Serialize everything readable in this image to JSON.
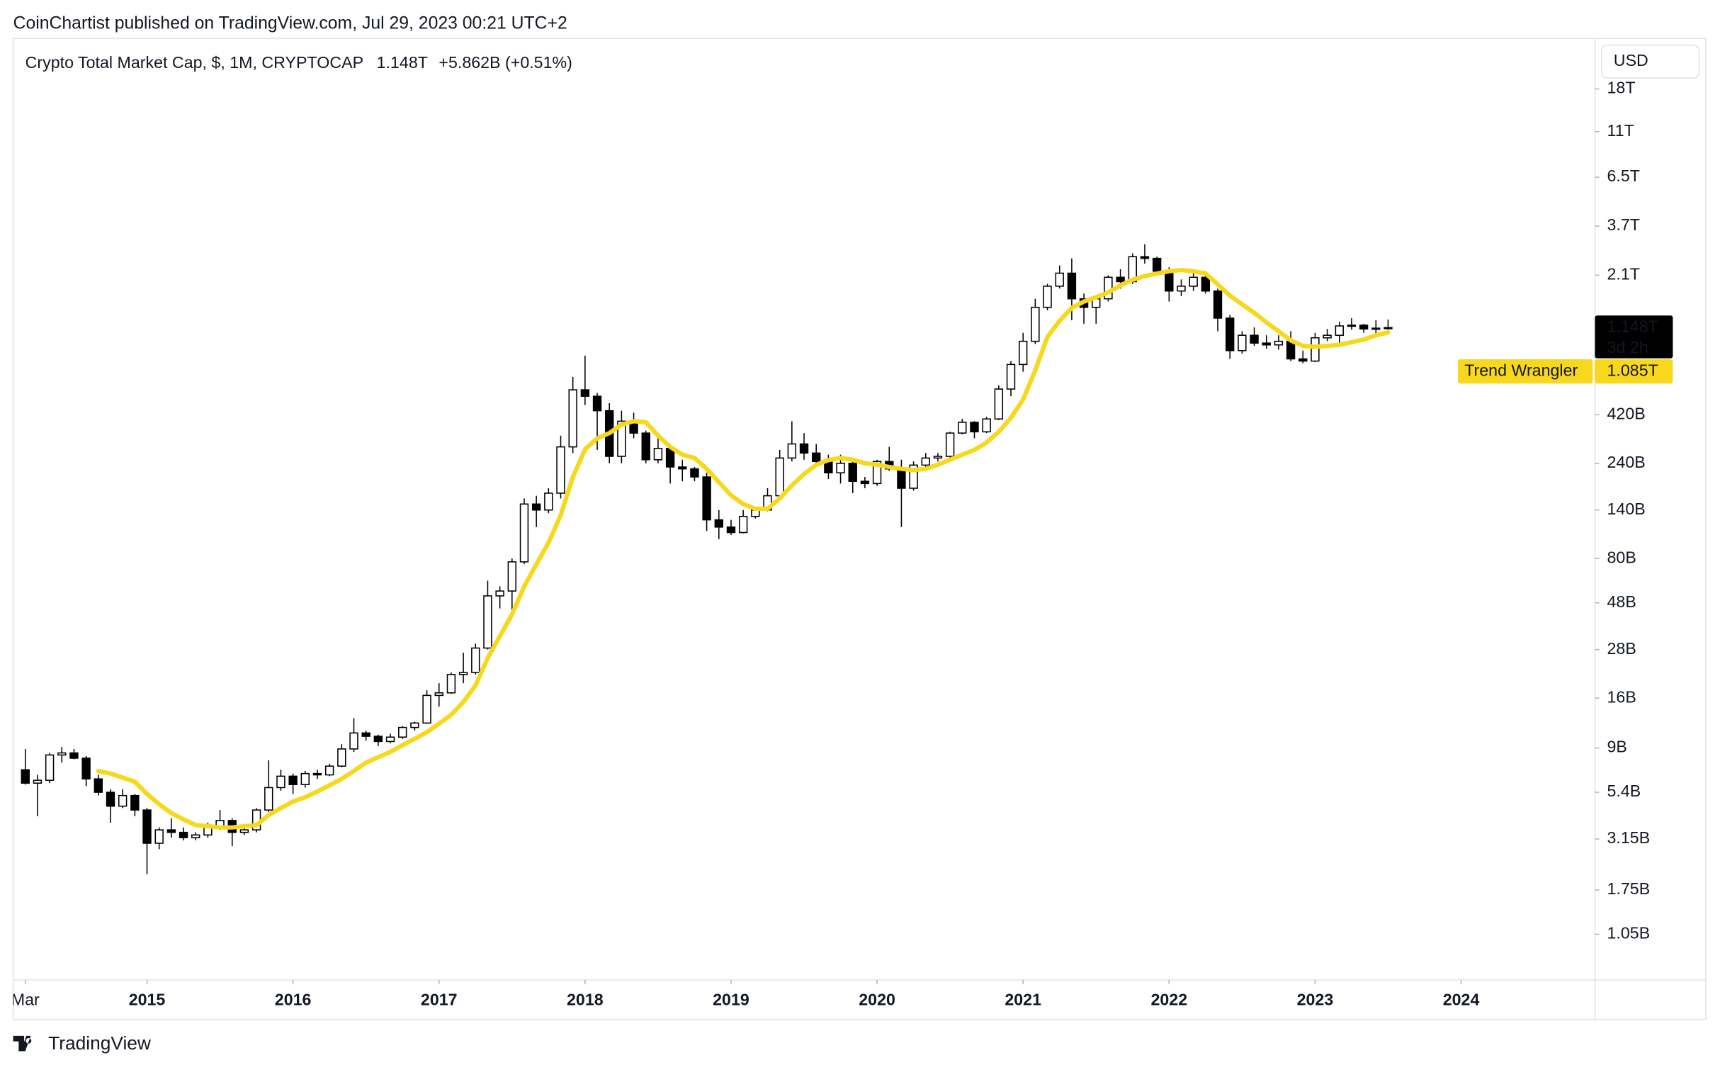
{
  "header": {
    "publisher": "CoinChartist published on TradingView.com, Jul 29, 2023 00:21 UTC+2",
    "currency_button": "USD",
    "footer_brand": "TradingView"
  },
  "chart_data": {
    "type": "candlestick",
    "title": "Crypto Total Market Cap, $, 1M, CRYPTOCAP",
    "last_price": {
      "value": 1148000000000.0,
      "label": "1.148T",
      "countdown": "3d 2h"
    },
    "change": "+5.862B (+0.51%)",
    "log_scale": true,
    "grid": false,
    "up_color": "#ffffff",
    "down_color": "#000000",
    "wick_color": "#000000",
    "xlim": [
      "2014-02",
      "2024-12"
    ],
    "xticks": [
      {
        "value": "2014-03",
        "label": "Mar"
      },
      {
        "value": "2015-01",
        "label": "2015"
      },
      {
        "value": "2016-01",
        "label": "2016"
      },
      {
        "value": "2017-01",
        "label": "2017"
      },
      {
        "value": "2018-01",
        "label": "2018"
      },
      {
        "value": "2019-01",
        "label": "2019"
      },
      {
        "value": "2020-01",
        "label": "2020"
      },
      {
        "value": "2021-01",
        "label": "2021"
      },
      {
        "value": "2022-01",
        "label": "2022"
      },
      {
        "value": "2023-01",
        "label": "2023"
      },
      {
        "value": "2024-01",
        "label": "2024"
      }
    ],
    "ylim": [
      620000000.0,
      32200000000000.0
    ],
    "yticks": [
      {
        "value": 18000000000000.0,
        "label": "18T"
      },
      {
        "value": 11000000000000.0,
        "label": "11T"
      },
      {
        "value": 6500000000000.0,
        "label": "6.5T"
      },
      {
        "value": 3700000000000.0,
        "label": "3.7T"
      },
      {
        "value": 2100000000000.0,
        "label": "2.1T"
      },
      {
        "value": 420000000000.0,
        "label": "420B"
      },
      {
        "value": 240000000000.0,
        "label": "240B"
      },
      {
        "value": 140000000000.0,
        "label": "140B"
      },
      {
        "value": 80000000000.0,
        "label": "80B"
      },
      {
        "value": 48000000000.0,
        "label": "48B"
      },
      {
        "value": 28000000000.0,
        "label": "28B"
      },
      {
        "value": 16000000000.0,
        "label": "16B"
      },
      {
        "value": 9000000000.0,
        "label": "9B"
      },
      {
        "value": 5400000000.0,
        "label": "5.4B"
      },
      {
        "value": 3150000000.0,
        "label": "3.15B"
      },
      {
        "value": 1750000000.0,
        "label": "1.75B"
      },
      {
        "value": 1050000000.0,
        "label": "1.05B"
      }
    ],
    "x": [
      "2014-03",
      "2014-04",
      "2014-05",
      "2014-06",
      "2014-07",
      "2014-08",
      "2014-09",
      "2014-10",
      "2014-11",
      "2014-12",
      "2015-01",
      "2015-02",
      "2015-03",
      "2015-04",
      "2015-05",
      "2015-06",
      "2015-07",
      "2015-08",
      "2015-09",
      "2015-10",
      "2015-11",
      "2015-12",
      "2016-01",
      "2016-02",
      "2016-03",
      "2016-04",
      "2016-05",
      "2016-06",
      "2016-07",
      "2016-08",
      "2016-09",
      "2016-10",
      "2016-11",
      "2016-12",
      "2017-01",
      "2017-02",
      "2017-03",
      "2017-04",
      "2017-05",
      "2017-06",
      "2017-07",
      "2017-08",
      "2017-09",
      "2017-10",
      "2017-11",
      "2017-12",
      "2018-01",
      "2018-02",
      "2018-03",
      "2018-04",
      "2018-05",
      "2018-06",
      "2018-07",
      "2018-08",
      "2018-09",
      "2018-10",
      "2018-11",
      "2018-12",
      "2019-01",
      "2019-02",
      "2019-03",
      "2019-04",
      "2019-05",
      "2019-06",
      "2019-07",
      "2019-08",
      "2019-09",
      "2019-10",
      "2019-11",
      "2019-12",
      "2020-01",
      "2020-02",
      "2020-03",
      "2020-04",
      "2020-05",
      "2020-06",
      "2020-07",
      "2020-08",
      "2020-09",
      "2020-10",
      "2020-11",
      "2020-12",
      "2021-01",
      "2021-02",
      "2021-03",
      "2021-04",
      "2021-05",
      "2021-06",
      "2021-07",
      "2021-08",
      "2021-09",
      "2021-10",
      "2021-11",
      "2021-12",
      "2022-01",
      "2022-02",
      "2022-03",
      "2022-04",
      "2022-05",
      "2022-06",
      "2022-07",
      "2022-08",
      "2022-09",
      "2022-10",
      "2022-11",
      "2022-12",
      "2023-01",
      "2023-02",
      "2023-03",
      "2023-04",
      "2023-05",
      "2023-06",
      "2023-07"
    ],
    "open": [
      7000000000.0,
      6000000000.0,
      6200000000.0,
      8300000000.0,
      8500000000.0,
      8000000000.0,
      6300000000.0,
      5400000000.0,
      4600000000.0,
      5200000000.0,
      4400000000.0,
      3000000000.0,
      3500000000.0,
      3400000000.0,
      3200000000.0,
      3300000000.0,
      3600000000.0,
      3900000000.0,
      3400000000.0,
      3500000000.0,
      4400000000.0,
      5700000000.0,
      6500000000.0,
      5900000000.0,
      6700000000.0,
      6600000000.0,
      7300000000.0,
      8900000000.0,
      10700000000.0,
      10300000000.0,
      9700000000.0,
      10200000000.0,
      11400000000.0,
      12000000000.0,
      16500000000.0,
      17000000000.0,
      21000000000.0,
      21500000000.0,
      28500000000.0,
      52000000000.0,
      55000000000.0,
      77000000000.0,
      150000000000.0,
      140000000000.0,
      170000000000.0,
      290000000000.0,
      560000000000.0,
      520000000000.0,
      440000000000.0,
      260000000000.0,
      390000000000.0,
      340000000000.0,
      250000000000.0,
      285000000000.0,
      230000000000.0,
      225000000000.0,
      205000000000.0,
      125000000000.0,
      115000000000.0,
      108000000000.0,
      130000000000.0,
      140000000000.0,
      165000000000.0,
      255000000000.0,
      300000000000.0,
      270000000000.0,
      245000000000.0,
      215000000000.0,
      240000000000.0,
      195000000000.0,
      190000000000.0,
      245000000000.0,
      225000000000.0,
      180000000000.0,
      235000000000.0,
      255000000000.0,
      260000000000.0,
      340000000000.0,
      385000000000.0,
      345000000000.0,
      400000000000.0,
      565000000000.0,
      750000000000.0,
      980000000000.0,
      1450000000000.0,
      1850000000000.0,
      2150000000000.0,
      1600000000000.0,
      1450000000000.0,
      1600000000000.0,
      2050000000000.0,
      1950000000000.0,
      2600000000000.0,
      2550000000000.0,
      2200000000000.0,
      1750000000000.0,
      1850000000000.0,
      2050000000000.0,
      1750000000000.0,
      1280000000000.0,
      880000000000.0,
      1050000000000.0,
      960000000000.0,
      940000000000.0,
      980000000000.0,
      800000000000.0,
      780000000000.0,
      1020000000000.0,
      1050000000000.0,
      1170000000000.0,
      1180000000000.0,
      1130000000000.0,
      1140000000000.0
    ],
    "high": [
      8900000000.0,
      6600000000.0,
      8500000000.0,
      9100000000.0,
      8900000000.0,
      8200000000.0,
      6600000000.0,
      5600000000.0,
      5600000000.0,
      5300000000.0,
      4500000000.0,
      3600000000.0,
      4000000000.0,
      3600000000.0,
      3400000000.0,
      3800000000.0,
      4400000000.0,
      4000000000.0,
      3600000000.0,
      4500000000.0,
      7800000000.0,
      7000000000.0,
      6700000000.0,
      6900000000.0,
      7000000000.0,
      7500000000.0,
      9400000000.0,
      12700000000.0,
      11000000000.0,
      10500000000.0,
      10600000000.0,
      11600000000.0,
      12200000000.0,
      17500000000.0,
      19000000000.0,
      21500000000.0,
      27000000000.0,
      30000000000.0,
      62000000000.0,
      58000000000.0,
      80000000000.0,
      160000000000.0,
      165000000000.0,
      180000000000.0,
      330000000000.0,
      650000000000.0,
      830000000000.0,
      540000000000.0,
      480000000000.0,
      440000000000.0,
      430000000000.0,
      350000000000.0,
      330000000000.0,
      300000000000.0,
      250000000000.0,
      230000000000.0,
      215000000000.0,
      140000000000.0,
      125000000000.0,
      140000000000.0,
      142000000000.0,
      180000000000.0,
      280000000000.0,
      390000000000.0,
      340000000000.0,
      300000000000.0,
      265000000000.0,
      265000000000.0,
      255000000000.0,
      205000000000.0,
      250000000000.0,
      290000000000.0,
      250000000000.0,
      245000000000.0,
      270000000000.0,
      270000000000.0,
      345000000000.0,
      400000000000.0,
      390000000000.0,
      410000000000.0,
      590000000000.0,
      780000000000.0,
      1080000000000.0,
      1600000000000.0,
      1900000000000.0,
      2350000000000.0,
      2550000000000.0,
      1700000000000.0,
      1650000000000.0,
      2100000000000.0,
      2250000000000.0,
      2700000000000.0,
      3000000000000.0,
      2600000000000.0,
      2300000000000.0,
      2000000000000.0,
      2200000000000.0,
      2200000000000.0,
      1800000000000.0,
      1330000000000.0,
      1100000000000.0,
      1150000000000.0,
      1050000000000.0,
      1050000000000.0,
      1100000000000.0,
      880000000000.0,
      1080000000000.0,
      1130000000000.0,
      1230000000000.0,
      1280000000000.0,
      1200000000000.0,
      1250000000000.0,
      1260000000000.0
    ],
    "low": [
      5900000000.0,
      4100000000.0,
      6000000000.0,
      7600000000.0,
      7900000000.0,
      5800000000.0,
      5200000000.0,
      3800000000.0,
      4500000000.0,
      4100000000.0,
      2100000000.0,
      2800000000.0,
      3200000000.0,
      3100000000.0,
      3100000000.0,
      3200000000.0,
      3500000000.0,
      2900000000.0,
      3300000000.0,
      3400000000.0,
      4300000000.0,
      5500000000.0,
      5300000000.0,
      5700000000.0,
      6300000000.0,
      6500000000.0,
      7200000000.0,
      8600000000.0,
      9800000000.0,
      9200000000.0,
      9500000000.0,
      10000000000.0,
      11000000000.0,
      11900000000.0,
      14500000000.0,
      16800000000.0,
      19000000000.0,
      21000000000.0,
      28000000000.0,
      45000000000.0,
      44000000000.0,
      75000000000.0,
      115000000000.0,
      135000000000.0,
      160000000000.0,
      270000000000.0,
      470000000000.0,
      280000000000.0,
      240000000000.0,
      240000000000.0,
      320000000000.0,
      240000000000.0,
      240000000000.0,
      190000000000.0,
      195000000000.0,
      195000000000.0,
      110000000000.0,
      100000000000.0,
      105000000000.0,
      107000000000.0,
      127000000000.0,
      138000000000.0,
      160000000000.0,
      245000000000.0,
      250000000000.0,
      235000000000.0,
      200000000000.0,
      190000000000.0,
      170000000000.0,
      180000000000.0,
      185000000000.0,
      220000000000.0,
      115000000000.0,
      175000000000.0,
      230000000000.0,
      245000000000.0,
      255000000000.0,
      335000000000.0,
      320000000000.0,
      340000000000.0,
      395000000000.0,
      520000000000.0,
      690000000000.0,
      950000000000.0,
      1400000000000.0,
      1800000000000.0,
      1250000000000.0,
      1200000000000.0,
      1200000000000.0,
      1550000000000.0,
      1800000000000.0,
      1900000000000.0,
      2400000000000.0,
      2100000000000.0,
      1550000000000.0,
      1650000000000.0,
      1750000000000.0,
      1700000000000.0,
      1100000000000.0,
      800000000000.0,
      850000000000.0,
      930000000000.0,
      900000000000.0,
      890000000000.0,
      780000000000.0,
      760000000000.0,
      770000000000.0,
      980000000000.0,
      950000000000.0,
      1120000000000.0,
      1080000000000.0,
      1030000000000.0,
      1120000000000.0
    ],
    "close": [
      6000000000.0,
      6200000000.0,
      8300000000.0,
      8500000000.0,
      8000000000.0,
      6300000000.0,
      5400000000.0,
      4600000000.0,
      5200000000.0,
      4400000000.0,
      3000000000.0,
      3500000000.0,
      3400000000.0,
      3200000000.0,
      3300000000.0,
      3600000000.0,
      3900000000.0,
      3400000000.0,
      3500000000.0,
      4400000000.0,
      5700000000.0,
      6500000000.0,
      5900000000.0,
      6700000000.0,
      6600000000.0,
      7300000000.0,
      8900000000.0,
      10700000000.0,
      10300000000.0,
      9700000000.0,
      10200000000.0,
      11400000000.0,
      12000000000.0,
      16500000000.0,
      17000000000.0,
      21000000000.0,
      21500000000.0,
      28500000000.0,
      52000000000.0,
      55000000000.0,
      77000000000.0,
      150000000000.0,
      140000000000.0,
      170000000000.0,
      290000000000.0,
      560000000000.0,
      520000000000.0,
      440000000000.0,
      260000000000.0,
      390000000000.0,
      340000000000.0,
      250000000000.0,
      285000000000.0,
      230000000000.0,
      225000000000.0,
      205000000000.0,
      125000000000.0,
      115000000000.0,
      108000000000.0,
      130000000000.0,
      140000000000.0,
      165000000000.0,
      255000000000.0,
      300000000000.0,
      270000000000.0,
      245000000000.0,
      215000000000.0,
      240000000000.0,
      195000000000.0,
      190000000000.0,
      245000000000.0,
      225000000000.0,
      180000000000.0,
      235000000000.0,
      255000000000.0,
      260000000000.0,
      340000000000.0,
      385000000000.0,
      345000000000.0,
      400000000000.0,
      565000000000.0,
      750000000000.0,
      980000000000.0,
      1450000000000.0,
      1850000000000.0,
      2150000000000.0,
      1600000000000.0,
      1450000000000.0,
      1600000000000.0,
      2050000000000.0,
      1950000000000.0,
      2600000000000.0,
      2550000000000.0,
      2200000000000.0,
      1750000000000.0,
      1850000000000.0,
      2050000000000.0,
      1750000000000.0,
      1280000000000.0,
      880000000000.0,
      1050000000000.0,
      960000000000.0,
      940000000000.0,
      980000000000.0,
      800000000000.0,
      780000000000.0,
      1020000000000.0,
      1050000000000.0,
      1170000000000.0,
      1180000000000.0,
      1130000000000.0,
      1140000000000.0,
      1148000000000.0
    ],
    "overlays": [
      {
        "name": "Trend Wrangler",
        "type": "line",
        "color": "#f7d81c",
        "last_label": "1.085T",
        "values": [
          null,
          null,
          null,
          null,
          null,
          null,
          6900000000.0,
          6700000000.0,
          6400000000.0,
          6100000000.0,
          5300000000.0,
          4700000000.0,
          4250000000.0,
          3950000000.0,
          3700000000.0,
          3650000000.0,
          3600000000.0,
          3600000000.0,
          3650000000.0,
          3700000000.0,
          4150000000.0,
          4500000000.0,
          4850000000.0,
          5100000000.0,
          5450000000.0,
          5850000000.0,
          6300000000.0,
          6900000000.0,
          7600000000.0,
          8100000000.0,
          8600000000.0,
          9300000000.0,
          10000000000.0,
          10800000000.0,
          11900000000.0,
          13200000000.0,
          15300000000.0,
          18500000000.0,
          25400000000.0,
          32700000000.0,
          42000000000.0,
          58000000000.0,
          75000000000.0,
          96000000000.0,
          132000000000.0,
          205000000000.0,
          282000000000.0,
          320000000000.0,
          340000000000.0,
          375000000000.0,
          390000000000.0,
          385000000000.0,
          330000000000.0,
          290000000000.0,
          265000000000.0,
          255000000000.0,
          225000000000.0,
          193000000000.0,
          166000000000.0,
          150000000000.0,
          142000000000.0,
          142000000000.0,
          160000000000.0,
          186000000000.0,
          212000000000.0,
          236000000000.0,
          249000000000.0,
          255000000000.0,
          250000000000.0,
          240000000000.0,
          236000000000.0,
          230000000000.0,
          225000000000.0,
          222000000000.0,
          225000000000.0,
          236000000000.0,
          250000000000.0,
          265000000000.0,
          280000000000.0,
          305000000000.0,
          345000000000.0,
          405000000000.0,
          500000000000.0,
          700000000000.0,
          1030000000000.0,
          1240000000000.0,
          1440000000000.0,
          1550000000000.0,
          1630000000000.0,
          1720000000000.0,
          1870000000000.0,
          1990000000000.0,
          2080000000000.0,
          2140000000000.0,
          2200000000000.0,
          2230000000000.0,
          2200000000000.0,
          2140000000000.0,
          1890000000000.0,
          1660000000000.0,
          1500000000000.0,
          1360000000000.0,
          1220000000000.0,
          1100000000000.0,
          990000000000.0,
          930000000000.0,
          920000000000.0,
          930000000000.0,
          940000000000.0,
          970000000000.0,
          1000000000000.0,
          1050000000000.0,
          1085000000000.0
        ]
      }
    ]
  }
}
